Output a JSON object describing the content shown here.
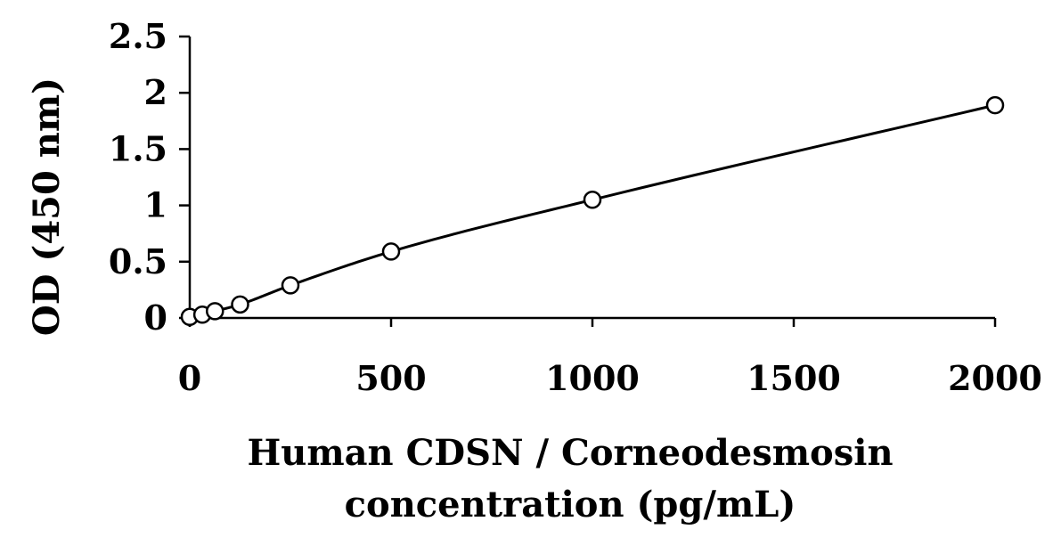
{
  "chart_data": {
    "type": "scatter",
    "title": "",
    "xlabel_lines": [
      "Human CDSN / Corneodesmosin",
      "concentration (pg/mL)"
    ],
    "ylabel": "OD (450 nm)",
    "xlim": [
      0,
      2000
    ],
    "ylim": [
      0,
      2.5
    ],
    "x_ticks": [
      0,
      500,
      1000,
      1500,
      2000
    ],
    "y_ticks": [
      0,
      0.5,
      1,
      1.5,
      2,
      2.5
    ],
    "x_tick_labels": [
      "0",
      "500",
      "1000",
      "1500",
      "2000"
    ],
    "y_tick_labels": [
      "0",
      "0.5",
      "1",
      "1.5",
      "2",
      "2.5"
    ],
    "grid": false,
    "series": [
      {
        "marker": "open-circle",
        "fit": "smooth-curve",
        "x": [
          0,
          31.25,
          62.5,
          125,
          250,
          500,
          1000,
          2000
        ],
        "y": [
          0.01,
          0.03,
          0.06,
          0.12,
          0.29,
          0.59,
          1.05,
          1.89
        ]
      }
    ]
  }
}
